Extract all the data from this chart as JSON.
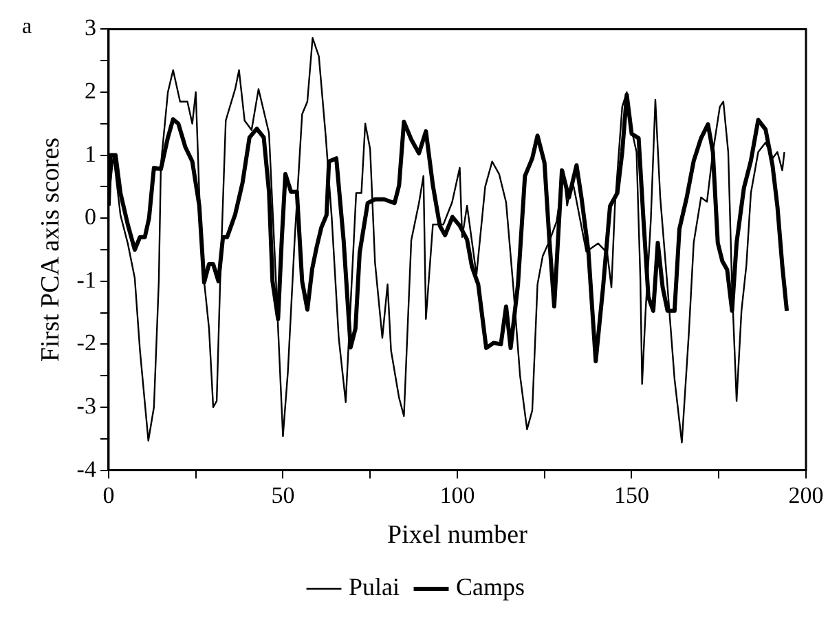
{
  "chart_data": {
    "type": "line",
    "xlabel": "Pixel number",
    "ylabel": "First PCA axis scores",
    "annotations": [
      "a"
    ],
    "xlim": [
      0,
      200
    ],
    "ylim": [
      -4,
      3
    ],
    "xticks": [
      0,
      {
        "value": 25,
        "label": null
      },
      50,
      {
        "value": 75,
        "label": null
      },
      100,
      {
        "value": 125,
        "label": null
      },
      150,
      {
        "value": 175,
        "label": null
      },
      200
    ],
    "yticks": [
      -4,
      {
        "value": -3.5,
        "label": null
      },
      -3,
      {
        "value": -2.5,
        "label": null
      },
      -2,
      {
        "value": -1.5,
        "label": null
      },
      -1,
      {
        "value": -0.5,
        "label": null
      },
      0,
      {
        "value": 0.5,
        "label": null
      },
      1,
      {
        "value": 1.5,
        "label": null
      },
      2,
      {
        "value": 2.5,
        "label": null
      },
      3
    ],
    "grid": false,
    "legend": "bottom",
    "marker": "none",
    "line_style": "solid",
    "series": [
      {
        "name": "Pulai",
        "color": "#000000",
        "x": [
          0,
          1.4,
          3.4,
          5.5,
          7.5,
          9,
          11.4,
          13,
          14.4,
          15,
          17,
          18.5,
          20.5,
          22.6,
          24,
          25,
          26,
          27.4,
          28.8,
          30,
          31,
          32,
          33.6,
          36.3,
          37.4,
          39,
          41,
          43,
          46,
          48,
          50,
          51.4,
          53.4,
          55.5,
          57,
          58.5,
          60.3,
          62.3,
          64,
          66,
          68,
          71,
          72.5,
          73.6,
          75,
          76.4,
          78.5,
          80,
          81,
          83.3,
          84.7,
          86.8,
          89,
          90.3,
          91,
          93,
          96,
          98.5,
          100.7,
          101.4,
          102.8,
          105.5,
          108,
          110,
          112,
          114,
          116,
          118,
          120,
          121.5,
          123,
          124.5,
          126.5,
          128.5,
          130.5,
          131.5,
          133,
          134,
          137,
          140.4,
          143,
          144.2,
          145.2,
          147.3,
          148.6,
          150,
          151.4,
          152.5,
          153,
          154,
          155.5,
          156.8,
          158.2,
          160.3,
          162.3,
          164.4,
          166.4,
          167.8,
          169.9,
          171.6,
          173.3,
          175.3,
          176.3,
          177.7,
          178.8,
          180.1,
          181.5,
          182.9,
          184.2,
          186.3,
          188.4,
          190.4,
          191.8,
          193.2,
          193.8
        ],
        "values": [
          0.3,
          1,
          0.05,
          -0.4,
          -0.95,
          -2.1,
          -3.53,
          -3,
          -1,
          0.85,
          2,
          2.35,
          1.85,
          1.85,
          1.5,
          2,
          0.4,
          -1,
          -1.75,
          -3,
          -2.9,
          -1,
          1.55,
          2.05,
          2.35,
          1.55,
          1.4,
          2.05,
          1.35,
          -1,
          -3.46,
          -2.45,
          -0.3,
          1.65,
          1.85,
          2.86,
          2.57,
          1.28,
          0,
          -1.9,
          -2.92,
          0.4,
          0.4,
          1.5,
          1.1,
          -0.7,
          -1.9,
          -1.05,
          -2.1,
          -2.85,
          -3.14,
          -0.35,
          0.24,
          0.67,
          -1.6,
          -0.1,
          -0.1,
          0.25,
          0.8,
          -0.3,
          0.2,
          -0.9,
          0.5,
          0.9,
          0.7,
          0.25,
          -1.05,
          -2.5,
          -3.35,
          -3.05,
          -1.05,
          -0.6,
          -0.35,
          -0.05,
          0.74,
          0.2,
          0.6,
          0.33,
          -0.53,
          -0.4,
          -0.55,
          -1.1,
          0.19,
          1.77,
          2,
          1.4,
          1.05,
          -0.97,
          -2.63,
          -1.47,
          -0.03,
          1.88,
          0.33,
          -1.1,
          -2.55,
          -3.56,
          -1.83,
          -0.39,
          0.33,
          0.26,
          1.05,
          1.77,
          1.85,
          1.05,
          -1.1,
          -2.9,
          -1.47,
          -0.75,
          0.4,
          1.05,
          1.2,
          0.95,
          1.05,
          0.76,
          1.05
        ]
      },
      {
        "name": "Camps",
        "color": "#000000",
        "x": [
          0,
          0.5,
          2,
          3.4,
          5.5,
          7.5,
          9,
          10.4,
          11.6,
          13,
          15,
          17,
          18.5,
          20,
          22,
          24,
          26,
          27.4,
          28.8,
          30,
          31.5,
          32.8,
          34,
          36.3,
          38.4,
          40.4,
          42.5,
          44.5,
          46,
          47,
          48.6,
          49.7,
          50.7,
          52.3,
          54,
          55.5,
          57,
          58.4,
          59.7,
          61,
          62.5,
          63.2,
          65.3,
          67.4,
          69.4,
          70.8,
          72,
          74.3,
          76.4,
          79,
          82,
          83.3,
          84.7,
          86.8,
          89,
          91,
          93,
          95,
          96.5,
          98.6,
          100.7,
          102.8,
          104.2,
          106,
          108.3,
          110.4,
          112.5,
          114,
          115.3,
          117.4,
          119.4,
          121.5,
          123,
          125,
          126.4,
          127.8,
          130,
          132,
          134.2,
          135.6,
          137.6,
          139.7,
          141.8,
          143.8,
          145.9,
          147.3,
          148.6,
          150,
          152,
          153.4,
          154.8,
          156.2,
          157.5,
          158.9,
          160.3,
          162.3,
          163.7,
          165.8,
          167.8,
          169.9,
          171.9,
          173.3,
          174.7,
          176,
          177.4,
          178.8,
          180.1,
          182.2,
          184.2,
          186.3,
          188.4,
          190.4,
          191.8,
          193.2,
          194.5
        ],
        "values": [
          0.2,
          1,
          1,
          0.4,
          -0.1,
          -0.5,
          -0.3,
          -0.3,
          0,
          0.8,
          0.78,
          1.28,
          1.57,
          1.5,
          1.13,
          0.9,
          0.2,
          -1.02,
          -0.73,
          -0.73,
          -1,
          -0.3,
          -0.3,
          0.06,
          0.56,
          1.28,
          1.42,
          1.28,
          0.42,
          -1,
          -1.6,
          -0.3,
          0.7,
          0.42,
          0.42,
          -1,
          -1.45,
          -0.8,
          -0.45,
          -0.15,
          0.05,
          0.9,
          0.95,
          -0.35,
          -2.05,
          -1.75,
          -0.55,
          0.24,
          0.3,
          0.3,
          0.24,
          0.52,
          1.53,
          1.25,
          1.03,
          1.38,
          0.52,
          -0.12,
          -0.27,
          0.02,
          -0.12,
          -0.34,
          -0.77,
          -1.05,
          -2.06,
          -1.98,
          -2,
          -1.4,
          -2.06,
          -1.05,
          0.67,
          0.95,
          1.31,
          0.88,
          -0.34,
          -1.4,
          0.76,
          0.33,
          0.84,
          0.33,
          -0.53,
          -2.27,
          -1.1,
          0.19,
          0.4,
          1.05,
          1.96,
          1.34,
          1.27,
          -0.03,
          -1.25,
          -1.47,
          -0.39,
          -1.1,
          -1.47,
          -1.47,
          -0.17,
          0.33,
          0.91,
          1.27,
          1.49,
          1.05,
          -0.39,
          -0.68,
          -0.82,
          -1.47,
          -0.39,
          0.48,
          0.91,
          1.56,
          1.41,
          0.84,
          0.19,
          -0.75,
          -1.47
        ]
      }
    ]
  }
}
